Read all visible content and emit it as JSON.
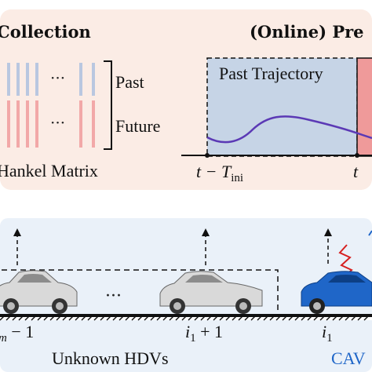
{
  "top_left": {
    "title": "Collection",
    "label_past": "Past",
    "label_future": "Future",
    "dots": "···",
    "caption": "Hankel Matrix"
  },
  "top_right": {
    "title": "(Online) Pre",
    "past_trajectory": "Past Trajectory",
    "tick_left_main": "t − T",
    "tick_left_sub": "ini",
    "tick_right": "t"
  },
  "bottom": {
    "label_left_sub": "m",
    "label_left_rest": " − 1",
    "label_mid": "i",
    "label_mid_sub": "1",
    "label_mid_rest": " + 1",
    "label_right": "i",
    "label_right_sub": "1",
    "ellipsis": "···",
    "unknown_hdvs": "Unknown HDVs",
    "cav": "CAV"
  },
  "colors": {
    "top_panel_bg": "#fbece5",
    "bottom_panel_bg": "#eaf1f9",
    "past_region": "#c6d4e6",
    "future_region": "#ef9a9a",
    "trajectory": "#5b39b5",
    "cav_blue": "#1f66c8",
    "car_gray": "#d9d9d9",
    "red_signal": "#d62020"
  }
}
